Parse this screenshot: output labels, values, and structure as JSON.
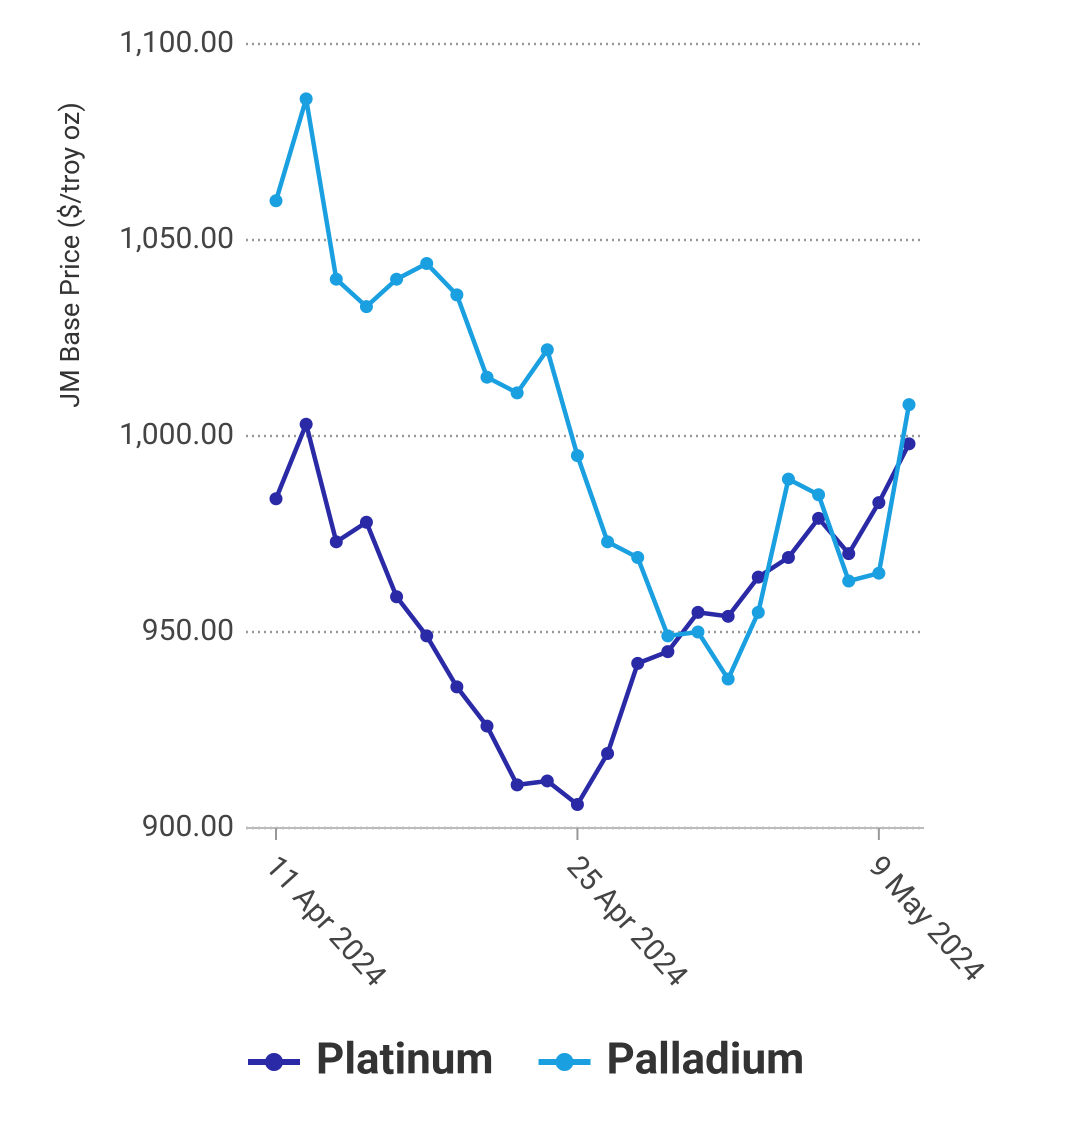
{
  "chart_data": {
    "type": "line",
    "y_label": "JM Base Price ($/troy oz)",
    "categories": [
      "11 Apr 2024",
      null,
      null,
      null,
      null,
      null,
      null,
      null,
      null,
      null,
      "25 Apr 2024",
      null,
      null,
      null,
      null,
      null,
      null,
      null,
      null,
      null,
      "9 May 2024",
      null
    ],
    "series": [
      {
        "name": "Platinum",
        "color": "#2a2aa6",
        "values": [
          984,
          1003,
          973,
          978,
          959,
          949,
          936,
          926,
          911,
          912,
          906,
          919,
          942,
          945,
          955,
          954,
          964,
          969,
          979,
          970,
          983,
          998
        ]
      },
      {
        "name": "Palladium",
        "color": "#1a9fe0",
        "values": [
          1060,
          1086,
          1040,
          1033,
          1040,
          1044,
          1036,
          1015,
          1011,
          1022,
          995,
          973,
          969,
          949,
          950,
          938,
          955,
          989,
          985,
          963,
          965,
          1008
        ]
      }
    ],
    "ylim": [
      900,
      1100
    ],
    "yticks": [
      {
        "value": 900,
        "label": "900.00"
      },
      {
        "value": 950,
        "label": "950.00"
      },
      {
        "value": 1000,
        "label": "1,000.00"
      },
      {
        "value": 1050,
        "label": "1,050.00"
      },
      {
        "value": 1100,
        "label": "1,100.00"
      }
    ],
    "grid": true
  }
}
